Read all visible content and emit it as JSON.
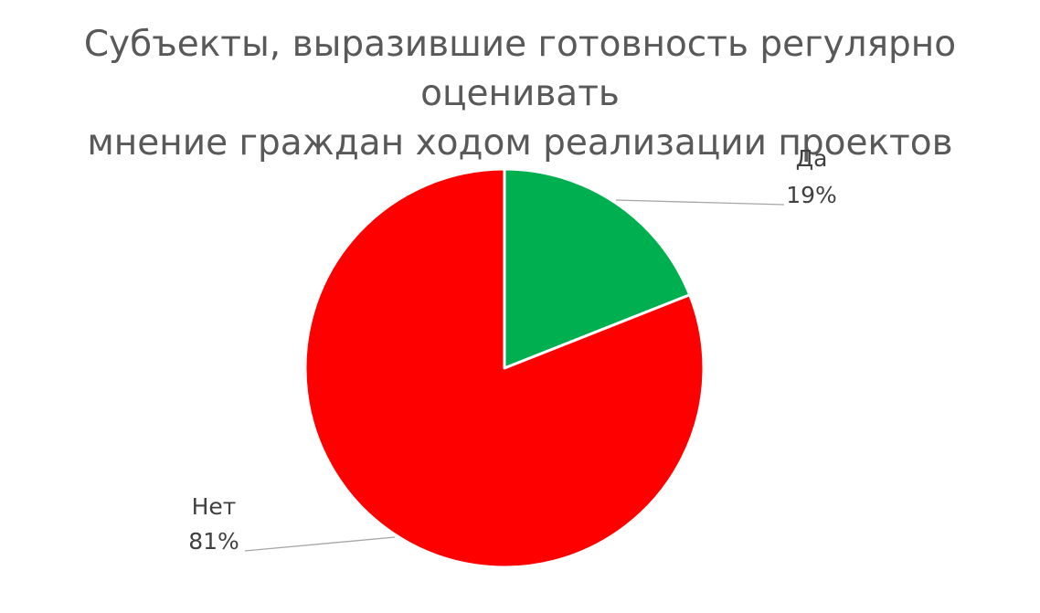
{
  "chart_data": {
    "type": "pie",
    "title": {
      "line1": "Субъекты, выразившие готовность регулярно оценивать",
      "line2": "мнение граждан ходом реализации проектов"
    },
    "categories": [
      "Да",
      "Нет"
    ],
    "values": [
      19,
      81
    ],
    "labels": [
      {
        "category": "Да",
        "value_text": "19%"
      },
      {
        "category": "Нет",
        "value_text": "81%"
      }
    ],
    "colors": [
      "#00B050",
      "#FF0000"
    ],
    "start_angle": "12 o'clock",
    "direction": "clockwise",
    "legend": "none"
  }
}
